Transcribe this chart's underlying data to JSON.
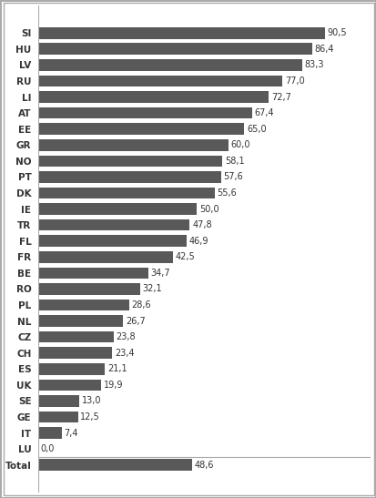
{
  "categories": [
    "SI",
    "HU",
    "LV",
    "RU",
    "LI",
    "AT",
    "EE",
    "GR",
    "NO",
    "PT",
    "DK",
    "IE",
    "TR",
    "FL",
    "FR",
    "BE",
    "RO",
    "PL",
    "NL",
    "CZ",
    "CH",
    "ES",
    "UK",
    "SE",
    "GE",
    "IT",
    "LU",
    "Total"
  ],
  "values": [
    90.5,
    86.4,
    83.3,
    77.0,
    72.7,
    67.4,
    65.0,
    60.0,
    58.1,
    57.6,
    55.6,
    50.0,
    47.8,
    46.9,
    42.5,
    34.7,
    32.1,
    28.6,
    26.7,
    23.8,
    23.4,
    21.1,
    19.9,
    13.0,
    12.5,
    7.4,
    0.0,
    48.6
  ],
  "labels": [
    "90,5",
    "86,4",
    "83,3",
    "77,0",
    "72,7",
    "67,4",
    "65,0",
    "60,0",
    "58,1",
    "57,6",
    "55,6",
    "50,0",
    "47,8",
    "46,9",
    "42,5",
    "34,7",
    "32,1",
    "28,6",
    "26,7",
    "23,8",
    "23,4",
    "21,1",
    "19,9",
    "13,0",
    "12,5",
    "7,4",
    "0,0",
    "48,6"
  ],
  "bar_color": "#595959",
  "background_color": "#ffffff",
  "text_color": "#333333",
  "bar_height": 0.72,
  "xlim": [
    0,
    105
  ],
  "label_fontsize": 7.0,
  "tick_fontsize": 7.5,
  "border_color": "#aaaaaa"
}
